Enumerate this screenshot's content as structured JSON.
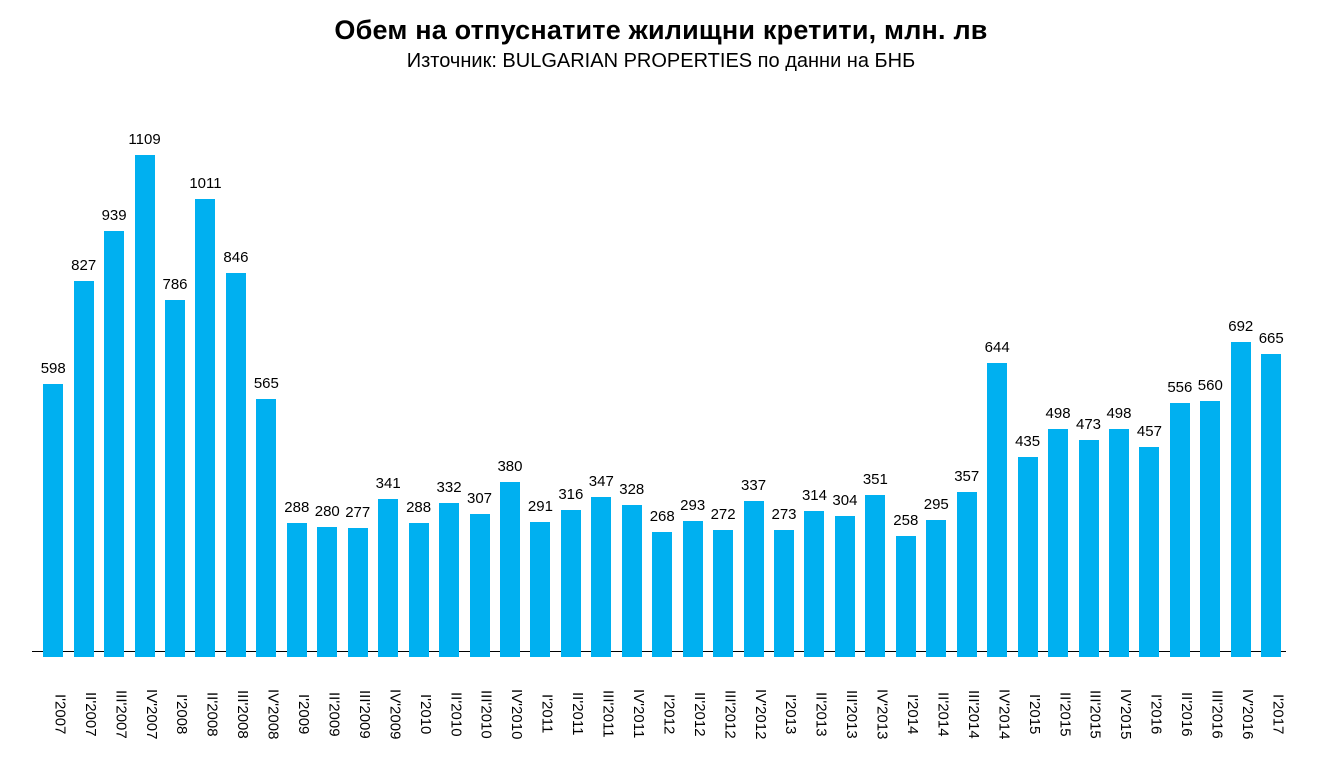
{
  "chart_data": {
    "type": "bar",
    "title": "Обем на отпуснатите жилищни кретити, млн. лв",
    "subtitle": "Източник: BULGARIAN PROPERTIES по данни на БНБ",
    "categories": [
      "I'2007",
      "II'2007",
      "III'2007",
      "IV'2007",
      "I'2008",
      "II'2008",
      "III'2008",
      "IV'2008",
      "I'2009",
      "II'2009",
      "III'2009",
      "IV'2009",
      "I'2010",
      "II'2010",
      "III'2010",
      "IV'2010",
      "I'2011",
      "II'2011",
      "III'2011",
      "IV'2011",
      "I'2012",
      "II'2012",
      "III'2012",
      "IV'2012",
      "I'2013",
      "II'2013",
      "III'2013",
      "IV'2013",
      "I'2014",
      "II'2014",
      "III'2014",
      "IV'2014",
      "I'2015",
      "II'2015",
      "III'2015",
      "IV'2015",
      "I'2016",
      "II'2016",
      "III'2016",
      "IV'2016",
      "I'2017"
    ],
    "values": [
      598,
      827,
      939,
      1109,
      786,
      1011,
      846,
      565,
      288,
      280,
      277,
      341,
      288,
      332,
      307,
      380,
      291,
      316,
      347,
      328,
      268,
      293,
      272,
      337,
      273,
      314,
      304,
      351,
      258,
      295,
      357,
      644,
      435,
      498,
      473,
      498,
      457,
      556,
      560,
      692,
      665
    ],
    "bar_color": "#00B0F0",
    "axis_line_color": "#000000",
    "text_color": "#000000",
    "background_color": "#FFFFFF",
    "ylim": [
      0,
      1200
    ],
    "legend": "none",
    "gridlines": false,
    "value_label_position": "above-bar",
    "x_label_orientation": "vertical-top-to-bottom"
  }
}
